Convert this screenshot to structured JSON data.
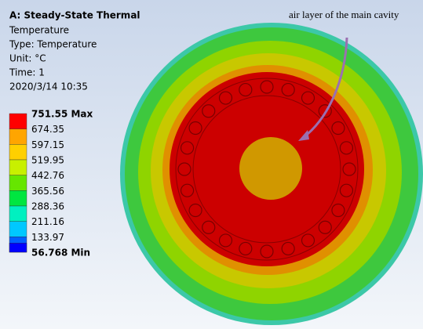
{
  "header": {
    "title": "A: Steady-State Thermal",
    "lines": [
      "Temperature",
      "Type: Temperature",
      "Unit: °C",
      "Time: 1",
      "2020/3/14 10:35"
    ]
  },
  "legend": {
    "labels": [
      "751.55 Max",
      "674.35",
      "597.15",
      "519.95",
      "442.76",
      "365.56",
      "288.36",
      "211.16",
      "133.97",
      "56.768 Min"
    ],
    "colors": [
      "#ff0000",
      "#ffa500",
      "#ffd000",
      "#c8f000",
      "#66e600",
      "#00e640",
      "#00f0c0",
      "#00c8ff",
      "#0060ff",
      "#0000ff"
    ]
  },
  "annotation": "air layer of the main cavity"
}
